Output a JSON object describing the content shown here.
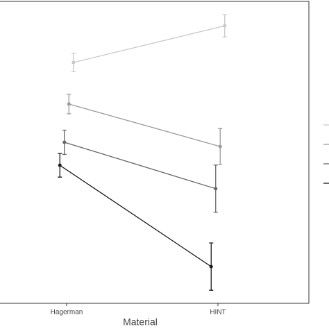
{
  "chart_data": {
    "type": "line",
    "x_label": "Material",
    "categories": [
      "Hagerman",
      "HINT"
    ],
    "ylim": [
      0,
      100
    ],
    "series": [
      {
        "color": "#1a1a1a",
        "values": [
          45.5,
          12.1
        ],
        "errors": [
          3.9,
          7.8
        ]
      },
      {
        "color": "#666666",
        "values": [
          53.1,
          37.8
        ],
        "errors": [
          4.0,
          7.8
        ]
      },
      {
        "color": "#9a9a9a",
        "values": [
          65.7,
          51.7
        ],
        "errors": [
          3.2,
          5.9
        ]
      },
      {
        "color": "#c8c8c8",
        "values": [
          79.4,
          91.5
        ],
        "errors": [
          3.0,
          3.7
        ]
      }
    ]
  }
}
